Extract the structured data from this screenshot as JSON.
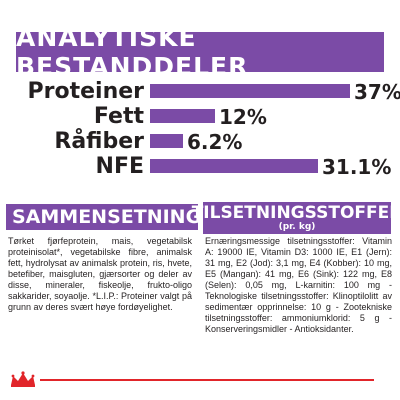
{
  "header": {
    "title": "ANALYTISKE BESTANDDELER"
  },
  "constituents": [
    {
      "label": "Proteiner",
      "value_text": "37%",
      "value": 37
    },
    {
      "label": "Fett",
      "value_text": "12%",
      "value": 12
    },
    {
      "label": "Råfiber",
      "value_text": "6.2%",
      "value": 6.2
    },
    {
      "label": "NFE",
      "value_text": "31.1%",
      "value": 31.1
    }
  ],
  "composition": {
    "title": "SAMMENSETNING",
    "text": "Tørket fjørfeprotein, mais, vegetabilsk proteinisolat*, vegetabilske fibre, animalsk fett, hydrolysat av animalsk protein, ris, hvete, betefiber, maisgluten, gjærsorter og deler av disse, mineraler, fiskeolje, frukto-oligo sakkarider, soyaolje. *L.I.P.: Proteiner valgt på grunn av deres svært høye fordøyelighet."
  },
  "additives": {
    "title": "TILSETNINGSSTOFFER",
    "subtitle": "(pr. kg)",
    "text": "Ernæringsmessige tilsetningsstoffer: Vitamin A: 19000 IE, Vitamin D3: 1000 IE, E1 (Jern): 31 mg, E2 (Jod): 3,1 mg, E4 (Kobber): 10 mg, E5 (Mangan): 41 mg, E6 (Sink): 122 mg, E8 (Selen): 0,05 mg, L-karnitin: 100 mg - Teknologiske tilsetningsstoffer: Klinoptilolitt av sedimentær opprinnelse: 10 g - Zootekniske tilsetningsstoffer: ammoniumklorid: 5 g - Konserveringsmidler - Antioksidanter."
  },
  "colors": {
    "accent": "#7b4ba6",
    "footer_line": "#e1252a",
    "text": "#231f20"
  },
  "footer": {
    "logo": "crown-logo-icon"
  }
}
